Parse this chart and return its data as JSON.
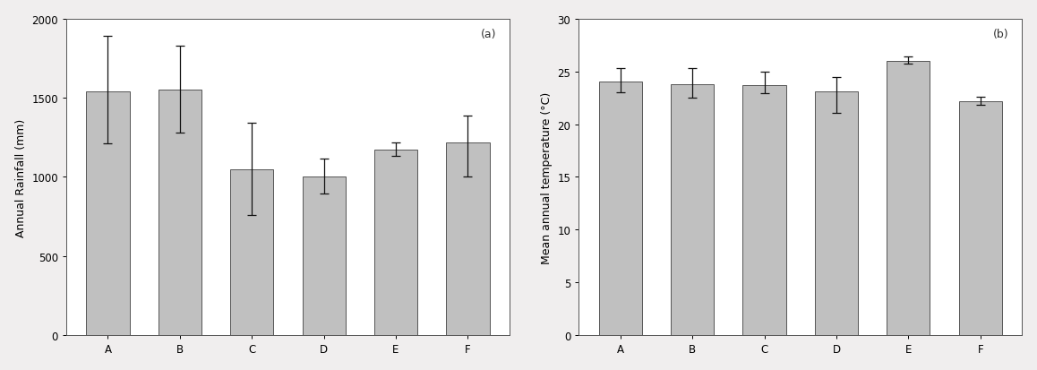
{
  "categories": [
    "A",
    "B",
    "C",
    "D",
    "E",
    "F"
  ],
  "rainfall_values": [
    1540,
    1550,
    1050,
    1005,
    1175,
    1220
  ],
  "rainfall_errors_upper": [
    350,
    280,
    290,
    110,
    45,
    170
  ],
  "rainfall_errors_lower": [
    330,
    270,
    290,
    110,
    45,
    220
  ],
  "rainfall_ylabel": "Annual Rainfall (mm)",
  "rainfall_ylim": [
    0,
    2000
  ],
  "rainfall_yticks": [
    0,
    500,
    1000,
    1500,
    2000
  ],
  "temp_values": [
    24.0,
    23.8,
    23.7,
    23.1,
    26.0,
    22.2
  ],
  "temp_errors_upper": [
    1.3,
    1.5,
    1.3,
    1.4,
    0.4,
    0.4
  ],
  "temp_errors_lower": [
    1.0,
    1.3,
    0.8,
    2.0,
    0.3,
    0.4
  ],
  "temp_ylabel": "Mean annual temperature (°C)",
  "temp_ylim": [
    0,
    30
  ],
  "temp_yticks": [
    0,
    5,
    10,
    15,
    20,
    25,
    30
  ],
  "bar_color": "#c0c0c0",
  "bar_edgecolor": "#555555",
  "error_color": "#111111",
  "label_a": "(a)",
  "label_b": "(b)",
  "background_color": "#f0eeee",
  "plot_bg_color": "#ffffff",
  "bar_width": 0.6,
  "fontsize_axis_label": 9,
  "fontsize_tick": 8.5,
  "fontsize_panel_label": 9
}
